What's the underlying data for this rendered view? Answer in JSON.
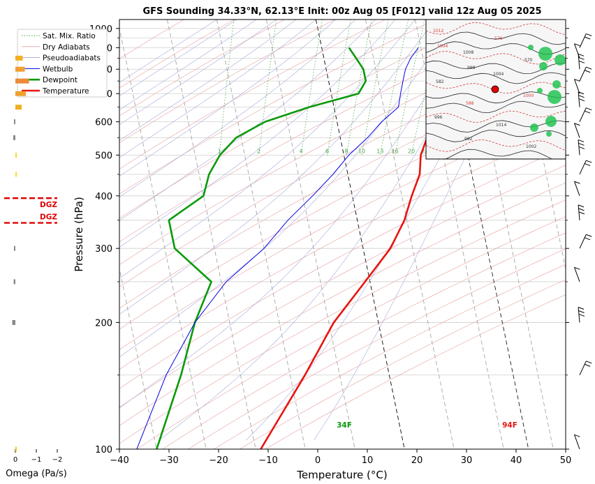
{
  "chart_data": {
    "type": "line",
    "title": "GFS Sounding 34.33°N, 62.13°E Init: 00z Aug 05 [F012] valid 12z Aug 05 2025",
    "xlabel": "Temperature (°C)",
    "ylabel": "Pressure (hPa)",
    "xlim": [
      -40,
      50
    ],
    "ylim": [
      1050,
      100
    ],
    "y_scale": "log",
    "x_ticks": [
      "−40",
      "−30",
      "−20",
      "−10",
      "0",
      "10",
      "20",
      "30",
      "40",
      "50"
    ],
    "y_ticks": [
      {
        "p": 100,
        "label": "100"
      },
      {
        "p": 200,
        "label": "200"
      },
      {
        "p": 300,
        "label": "300"
      },
      {
        "p": 400,
        "label": "400"
      },
      {
        "p": 500,
        "label": "500"
      },
      {
        "p": 600,
        "label": "600"
      },
      {
        "p": 700,
        "label": "700"
      },
      {
        "p": 800,
        "label": "800"
      },
      {
        "p": 900,
        "label": "900"
      },
      {
        "p": 1000,
        "label": "1000"
      }
    ],
    "grid": true,
    "legend": {
      "position": "top-left",
      "entries": [
        "Sat. Mix. Ratio",
        "Dry Adiabats",
        "Pseudoadiabats",
        "Wetbulb",
        "Dewpoint",
        "Temperature"
      ]
    },
    "mixing_ratio_labels": [
      "1",
      "2",
      "4",
      "6",
      "8",
      "10",
      "13",
      "16",
      "20",
      "24",
      "30",
      "36"
    ],
    "mixing_ratio_values": [
      1,
      2,
      4,
      6,
      8,
      10,
      13,
      16,
      20,
      24,
      30,
      36
    ],
    "series": [
      {
        "name": "Temperature",
        "color": "#e8140f",
        "points": [
          {
            "p": 900,
            "t": 38.5
          },
          {
            "p": 880,
            "t": 34.5
          },
          {
            "p": 850,
            "t": 31.0
          },
          {
            "p": 800,
            "t": 27.0
          },
          {
            "p": 750,
            "t": 24.5
          },
          {
            "p": 700,
            "t": 23.0
          },
          {
            "p": 650,
            "t": 22.0
          },
          {
            "p": 600,
            "t": 20.5
          },
          {
            "p": 550,
            "t": 17.5
          },
          {
            "p": 500,
            "t": 15.5
          },
          {
            "p": 450,
            "t": 14.5
          },
          {
            "p": 400,
            "t": 12.0
          },
          {
            "p": 350,
            "t": 9.5
          },
          {
            "p": 300,
            "t": 5.5
          },
          {
            "p": 250,
            "t": -1.0
          },
          {
            "p": 200,
            "t": -9.0
          },
          {
            "p": 150,
            "t": -17.0
          },
          {
            "p": 100,
            "t": -29.0
          }
        ]
      },
      {
        "name": "Dewpoint",
        "color": "#0a9a0a",
        "points": [
          {
            "p": 900,
            "t": 5.5
          },
          {
            "p": 850,
            "t": 6.5
          },
          {
            "p": 800,
            "t": 7.5
          },
          {
            "p": 750,
            "t": 7.5
          },
          {
            "p": 700,
            "t": 5.5
          },
          {
            "p": 650,
            "t": -5.0
          },
          {
            "p": 600,
            "t": -14.5
          },
          {
            "p": 550,
            "t": -21.0
          },
          {
            "p": 500,
            "t": -25.0
          },
          {
            "p": 450,
            "t": -28.0
          },
          {
            "p": 400,
            "t": -30.0
          },
          {
            "p": 350,
            "t": -38.0
          },
          {
            "p": 300,
            "t": -38.0
          },
          {
            "p": 250,
            "t": -32.0
          },
          {
            "p": 200,
            "t": -37.0
          },
          {
            "p": 150,
            "t": -42.0
          },
          {
            "p": 100,
            "t": -50.0
          }
        ]
      },
      {
        "name": "Wetbulb",
        "color": "#0000e0",
        "points": [
          {
            "p": 900,
            "t": 19.5
          },
          {
            "p": 850,
            "t": 17.5
          },
          {
            "p": 800,
            "t": 16.0
          },
          {
            "p": 750,
            "t": 15.0
          },
          {
            "p": 700,
            "t": 14.0
          },
          {
            "p": 650,
            "t": 13.0
          },
          {
            "p": 600,
            "t": 9.0
          },
          {
            "p": 550,
            "t": 5.5
          },
          {
            "p": 500,
            "t": 1.0
          },
          {
            "p": 450,
            "t": -3.0
          },
          {
            "p": 400,
            "t": -8.0
          },
          {
            "p": 350,
            "t": -14.0
          },
          {
            "p": 300,
            "t": -20.0
          },
          {
            "p": 250,
            "t": -29.0
          },
          {
            "p": 200,
            "t": -37.0
          },
          {
            "p": 150,
            "t": -45.0
          },
          {
            "p": 100,
            "t": -54.0
          }
        ]
      }
    ],
    "surface_temperature_label": "94F",
    "surface_dewpoint_label": "34F",
    "omega_panel": {
      "xlabel": "Omega (Pa/s)",
      "x_ticks": [
        "0",
        "−1",
        "−2"
      ],
      "dgz_label_top": "DGZ",
      "dgz_label_bottom": "DGZ",
      "dgz_pressures": [
        345,
        395
      ],
      "bars": [
        {
          "p": 100,
          "omega": -0.05,
          "color": "#f0d020"
        },
        {
          "p": 200,
          "omega": 0.15,
          "color": "#888888"
        },
        {
          "p": 250,
          "omega": 0.08,
          "color": "#888888"
        },
        {
          "p": 300,
          "omega": 0.05,
          "color": "#888888"
        },
        {
          "p": 450,
          "omega": -0.05,
          "color": "#f0e020"
        },
        {
          "p": 500,
          "omega": -0.03,
          "color": "#f0e020"
        },
        {
          "p": 550,
          "omega": 0.1,
          "color": "#888888"
        },
        {
          "p": 600,
          "omega": 0.03,
          "color": "#888888"
        },
        {
          "p": 650,
          "omega": -0.3,
          "color": "#f0b020"
        },
        {
          "p": 700,
          "omega": -0.5,
          "color": "#f0a030"
        },
        {
          "p": 750,
          "omega": -0.65,
          "color": "#ec8a3a"
        },
        {
          "p": 800,
          "omega": -0.45,
          "color": "#f0a030"
        },
        {
          "p": 850,
          "omega": -0.35,
          "color": "#f0b020"
        }
      ]
    },
    "wind_barbs": [
      {
        "p": 100
      },
      {
        "p": 150
      },
      {
        "p": 200
      },
      {
        "p": 250
      },
      {
        "p": 300
      },
      {
        "p": 350
      },
      {
        "p": 400
      },
      {
        "p": 450
      },
      {
        "p": 500
      },
      {
        "p": 550
      },
      {
        "p": 600
      },
      {
        "p": 650
      },
      {
        "p": 700
      },
      {
        "p": 750
      },
      {
        "p": 800
      },
      {
        "p": 850
      },
      {
        "p": 900
      }
    ],
    "inset_map": {
      "marker_color": "#e00000",
      "labels": [
        "1012",
        "1008",
        "1004",
        "1000",
        "996",
        "992",
        "576",
        "570",
        "582",
        "588",
        "1014",
        "1002",
        "1004",
        "998"
      ]
    }
  }
}
